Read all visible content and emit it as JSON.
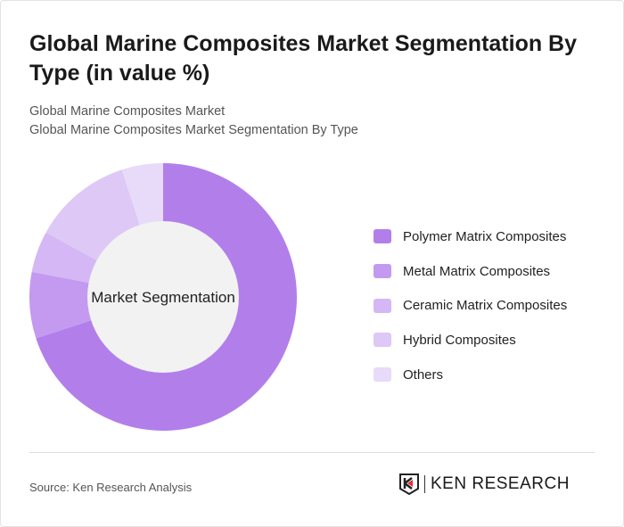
{
  "header": {
    "title": "Global Marine Composites Market Segmentation By Type (in value %)",
    "subtitle_1": "Global Marine Composites Market",
    "subtitle_2": "Global Marine Composites Market Segmentation By Type"
  },
  "chart_data": {
    "type": "pie",
    "variant": "donut",
    "center_label": "Market Segmentation",
    "categories": [
      "Polymer Matrix Composites",
      "Metal Matrix Composites",
      "Ceramic Matrix Composites",
      "Hybrid Composites",
      "Others"
    ],
    "values": [
      70,
      8,
      5,
      12,
      5
    ],
    "unit": "%",
    "colors": [
      "#b27fea",
      "#c39af0",
      "#d4b7f4",
      "#ddc8f6",
      "#e8daf9"
    ],
    "legend_position": "right"
  },
  "footer": {
    "source": "Source: Ken Research Analysis",
    "logo_text": "KEN RESEARCH"
  }
}
